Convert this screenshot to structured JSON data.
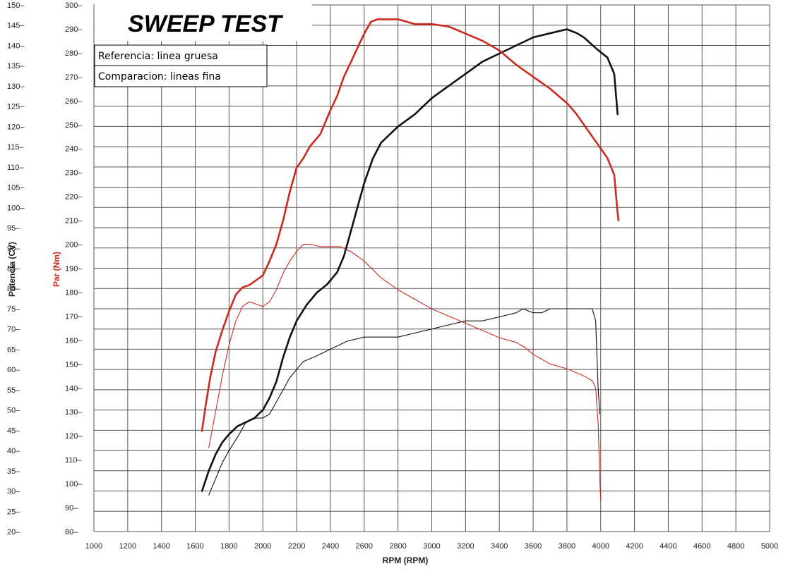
{
  "chart_data": {
    "type": "line",
    "title": "SWEEP TEST",
    "legend": {
      "placement": "top-left",
      "entries": [
        "Referencia: linea gruesa",
        "Comparacion: lineas fina"
      ]
    },
    "xlabel": "RPM (RPM)",
    "ylabel_left": "Potencia (CV)",
    "ylabel_right": "Par (Nm)",
    "xlim": [
      1000,
      5000
    ],
    "ylim_left": [
      20,
      150
    ],
    "ylim_right": [
      80,
      300
    ],
    "x_ticks": [
      "1000",
      "1200",
      "1400",
      "1600",
      "1800",
      "2000",
      "2200",
      "2400",
      "2600",
      "2800",
      "3000",
      "3200",
      "3400",
      "3600",
      "3800",
      "4000",
      "4200",
      "4400",
      "4600",
      "4800",
      "5000"
    ],
    "y_left_ticks": [
      "20–",
      "25–",
      "30–",
      "35–",
      "40–",
      "45–",
      "50–",
      "55–",
      "60–",
      "65–",
      "70–",
      "75–",
      "80–",
      "85–",
      "90–",
      "95–",
      "100–",
      "105–",
      "110–",
      "115–",
      "120–",
      "125–",
      "130–",
      "135–",
      "140–",
      "145–",
      "150–"
    ],
    "y_right_ticks": [
      "80–",
      "90–",
      "100–",
      "110–",
      "120–",
      "130–",
      "140–",
      "150–",
      "160–",
      "170–",
      "180–",
      "190–",
      "200–",
      "210–",
      "220–",
      "230–",
      "240–",
      "250–",
      "260–",
      "270–",
      "280–",
      "290–",
      "300–"
    ],
    "grid": true,
    "colors": {
      "power": "#111111",
      "torque": "#cc2a1e"
    },
    "series": [
      {
        "axis": "left",
        "color": "#111111",
        "weight": "thick",
        "points": [
          [
            1640,
            30
          ],
          [
            1680,
            35
          ],
          [
            1720,
            39
          ],
          [
            1760,
            42
          ],
          [
            1800,
            44
          ],
          [
            1850,
            46
          ],
          [
            1900,
            47
          ],
          [
            1950,
            48
          ],
          [
            2000,
            50
          ],
          [
            2040,
            53
          ],
          [
            2080,
            57
          ],
          [
            2120,
            63
          ],
          [
            2160,
            68
          ],
          [
            2200,
            72
          ],
          [
            2260,
            76
          ],
          [
            2320,
            79
          ],
          [
            2380,
            81
          ],
          [
            2440,
            84
          ],
          [
            2480,
            88
          ],
          [
            2520,
            94
          ],
          [
            2560,
            100
          ],
          [
            2600,
            106
          ],
          [
            2650,
            112
          ],
          [
            2700,
            116
          ],
          [
            2750,
            118
          ],
          [
            2800,
            120
          ],
          [
            2900,
            123
          ],
          [
            3000,
            127
          ],
          [
            3100,
            130
          ],
          [
            3200,
            133
          ],
          [
            3300,
            136
          ],
          [
            3400,
            138
          ],
          [
            3500,
            140
          ],
          [
            3600,
            142
          ],
          [
            3700,
            143
          ],
          [
            3800,
            144
          ],
          [
            3860,
            143
          ],
          [
            3900,
            142
          ],
          [
            3980,
            139
          ],
          [
            4040,
            137
          ],
          [
            4080,
            133
          ],
          [
            4100,
            123
          ]
        ]
      },
      {
        "axis": "right",
        "color": "#cc2a1e",
        "weight": "thick",
        "points": [
          [
            1640,
            122
          ],
          [
            1660,
            132
          ],
          [
            1690,
            145
          ],
          [
            1720,
            155
          ],
          [
            1760,
            164
          ],
          [
            1800,
            172
          ],
          [
            1840,
            179
          ],
          [
            1880,
            182
          ],
          [
            1920,
            183
          ],
          [
            1960,
            185
          ],
          [
            2000,
            187
          ],
          [
            2040,
            193
          ],
          [
            2080,
            200
          ],
          [
            2120,
            210
          ],
          [
            2160,
            222
          ],
          [
            2200,
            232
          ],
          [
            2240,
            236
          ],
          [
            2280,
            241
          ],
          [
            2340,
            246
          ],
          [
            2400,
            256
          ],
          [
            2440,
            262
          ],
          [
            2480,
            270
          ],
          [
            2520,
            276
          ],
          [
            2560,
            282
          ],
          [
            2600,
            288
          ],
          [
            2640,
            293
          ],
          [
            2680,
            294
          ],
          [
            2720,
            294
          ],
          [
            2800,
            294
          ],
          [
            2900,
            292
          ],
          [
            3000,
            292
          ],
          [
            3100,
            291
          ],
          [
            3200,
            288
          ],
          [
            3300,
            285
          ],
          [
            3400,
            281
          ],
          [
            3500,
            275
          ],
          [
            3600,
            270
          ],
          [
            3700,
            265
          ],
          [
            3800,
            259
          ],
          [
            3850,
            255
          ],
          [
            3900,
            250
          ],
          [
            3950,
            245
          ],
          [
            4000,
            240
          ],
          [
            4040,
            236
          ],
          [
            4080,
            229
          ],
          [
            4100,
            213
          ],
          [
            4105,
            210
          ]
        ]
      },
      {
        "axis": "left",
        "color": "#111111",
        "weight": "thin",
        "points": [
          [
            1680,
            29
          ],
          [
            1720,
            33
          ],
          [
            1760,
            37
          ],
          [
            1800,
            40
          ],
          [
            1860,
            44
          ],
          [
            1900,
            47
          ],
          [
            1960,
            48
          ],
          [
            2000,
            48
          ],
          [
            2040,
            49
          ],
          [
            2080,
            52
          ],
          [
            2120,
            55
          ],
          [
            2160,
            58
          ],
          [
            2200,
            60
          ],
          [
            2240,
            62
          ],
          [
            2300,
            63
          ],
          [
            2400,
            65
          ],
          [
            2500,
            67
          ],
          [
            2600,
            68
          ],
          [
            2700,
            68
          ],
          [
            2800,
            68
          ],
          [
            2900,
            69
          ],
          [
            3000,
            70
          ],
          [
            3100,
            71
          ],
          [
            3200,
            72
          ],
          [
            3300,
            72
          ],
          [
            3400,
            73
          ],
          [
            3500,
            74
          ],
          [
            3540,
            75
          ],
          [
            3600,
            74
          ],
          [
            3650,
            74
          ],
          [
            3700,
            75
          ],
          [
            3800,
            75
          ],
          [
            3900,
            75
          ],
          [
            3950,
            75
          ],
          [
            3970,
            72
          ],
          [
            3985,
            55
          ],
          [
            3995,
            49
          ]
        ]
      },
      {
        "axis": "right",
        "color": "#cc2a1e",
        "weight": "thin",
        "points": [
          [
            1680,
            115
          ],
          [
            1720,
            130
          ],
          [
            1760,
            145
          ],
          [
            1800,
            158
          ],
          [
            1840,
            168
          ],
          [
            1880,
            174
          ],
          [
            1920,
            176
          ],
          [
            1960,
            175
          ],
          [
            2000,
            174
          ],
          [
            2040,
            176
          ],
          [
            2080,
            181
          ],
          [
            2120,
            188
          ],
          [
            2160,
            193
          ],
          [
            2200,
            197
          ],
          [
            2240,
            200
          ],
          [
            2280,
            200
          ],
          [
            2340,
            199
          ],
          [
            2400,
            199
          ],
          [
            2460,
            199
          ],
          [
            2520,
            197
          ],
          [
            2600,
            193
          ],
          [
            2700,
            186
          ],
          [
            2800,
            181
          ],
          [
            2900,
            177
          ],
          [
            3000,
            173
          ],
          [
            3100,
            170
          ],
          [
            3200,
            167
          ],
          [
            3300,
            164
          ],
          [
            3400,
            161
          ],
          [
            3500,
            159
          ],
          [
            3550,
            157
          ],
          [
            3600,
            154
          ],
          [
            3700,
            150
          ],
          [
            3800,
            148
          ],
          [
            3900,
            145
          ],
          [
            3950,
            143
          ],
          [
            3970,
            140
          ],
          [
            3985,
            125
          ],
          [
            3995,
            100
          ],
          [
            4000,
            93
          ]
        ]
      }
    ]
  }
}
